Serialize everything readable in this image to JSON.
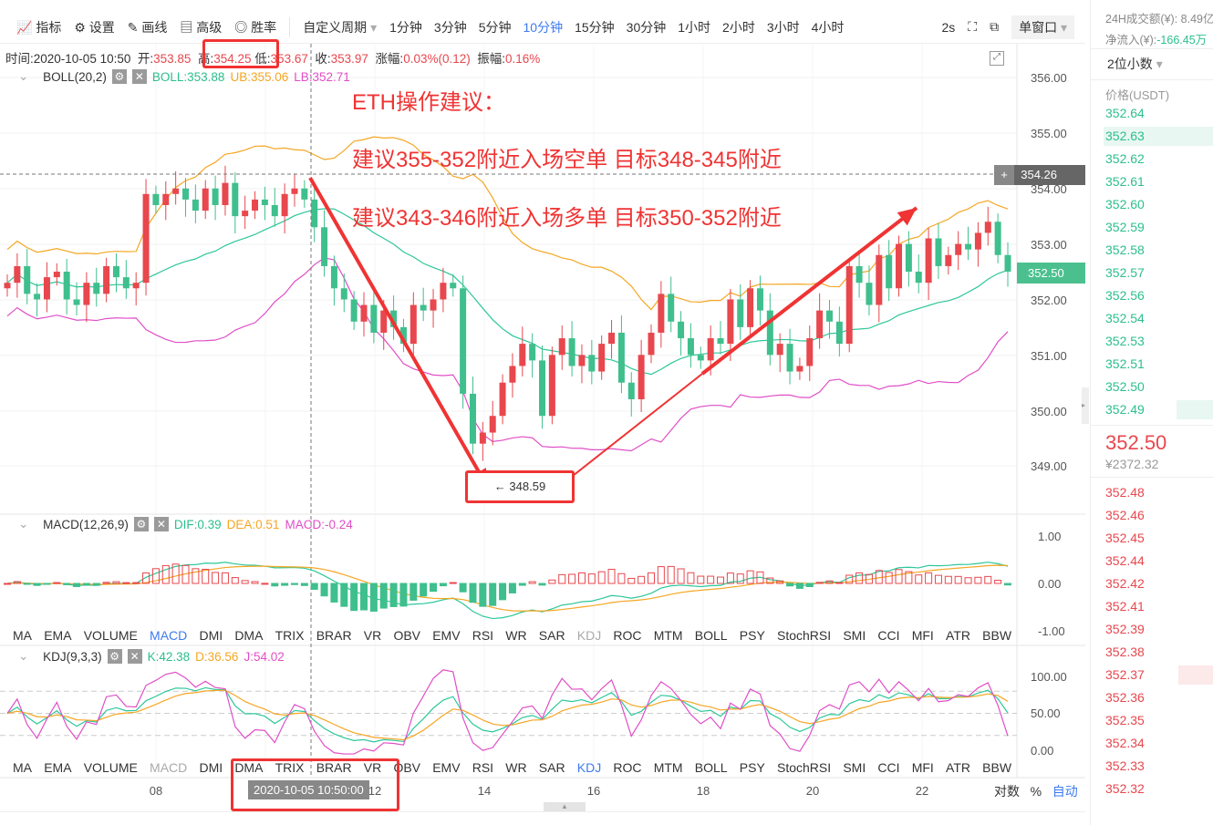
{
  "toolbar": {
    "tools": [
      "指标",
      "设置",
      "画线",
      "高级",
      "胜率"
    ],
    "period_select": "自定义周期",
    "periods": [
      "1分钟",
      "3分钟",
      "5分钟",
      "10分钟",
      "15分钟",
      "30分钟",
      "1小时",
      "2小时",
      "3小时",
      "4小时"
    ],
    "active_period": "10分钟",
    "refresh": "2s",
    "window_mode": "单窗口"
  },
  "info": {
    "time_label": "时间:",
    "time": "2020-10-05 10:50",
    "open_label": "开:",
    "open": "353.85",
    "high_label": "高:",
    "high": "354.25",
    "low_label": "低:",
    "low": "353.67",
    "close_label": "收:",
    "close": "353.97",
    "change_label": "涨幅:",
    "change": "0.03%(0.12)",
    "amp_label": "振幅:",
    "amp": "0.16%"
  },
  "boll": {
    "title": "BOLL(20,2)",
    "boll": "BOLL:353.88",
    "ub": "UB:355.06",
    "lb": "LB:352.71"
  },
  "macd": {
    "title": "MACD(12,26,9)",
    "dif": "DIF:0.39",
    "dea": "DEA:0.51",
    "macd": "MACD:-0.24"
  },
  "kdj": {
    "title": "KDJ(9,3,3)",
    "k": "K:42.38",
    "d": "D:36.56",
    "j": "J:54.02"
  },
  "indicator_tabs": [
    "MA",
    "EMA",
    "VOLUME",
    "MACD",
    "DMI",
    "DMA",
    "TRIX",
    "BRAR",
    "VR",
    "OBV",
    "EMV",
    "RSI",
    "WR",
    "SAR",
    "KDJ",
    "ROC",
    "MTM",
    "BOLL",
    "PSY",
    "StochRSI",
    "SMI",
    "CCI",
    "MFI",
    "ATR",
    "BBW"
  ],
  "annotations": {
    "title": "ETH操作建议：",
    "line1": "建议355-352附近入场空单    目标348-345附近",
    "line2": "建议343-346附近入场多单    目标350-352附近",
    "low_marker": "← 348.59"
  },
  "price_axis": [
    "356.00",
    "355.00",
    "354.00",
    "353.00",
    "352.00",
    "351.00",
    "350.00",
    "349.00"
  ],
  "crosshair_price": "354.26",
  "last_price": "352.50",
  "macd_axis": [
    "1.00",
    "0.00",
    "-1.00"
  ],
  "kdj_axis": [
    "100.00",
    "50.00",
    "0.00"
  ],
  "time_axis": [
    "08",
    "12",
    "14",
    "16",
    "18",
    "20",
    "22"
  ],
  "crosshair_time": "2020-10-05 10:50:00",
  "axis_opts": {
    "log": "对数",
    "pct": "%",
    "auto": "自动"
  },
  "colors": {
    "up": "#e8474d",
    "down": "#3fbf8d",
    "mid": "#2cc79a",
    "ub": "#f5a623",
    "lb": "#e04ec7",
    "annotation": "#f03333"
  },
  "right_panel": {
    "vol_24h": "24H成交额(¥): 8.49亿",
    "net_inflow_label": "净流入(¥):",
    "net_inflow": "-166.45万",
    "precision": "2位小数",
    "price_header": "价格(USDT)",
    "asks": [
      "352.64",
      "352.63",
      "352.62",
      "352.61",
      "352.60",
      "352.59",
      "352.58",
      "352.57",
      "352.56",
      "352.54",
      "352.53",
      "352.51",
      "352.50",
      "352.49"
    ],
    "last": "352.50",
    "last_cny": "¥2372.32",
    "bids": [
      "352.48",
      "352.46",
      "352.45",
      "352.44",
      "352.42",
      "352.41",
      "352.39",
      "352.38",
      "352.37",
      "352.36",
      "352.35",
      "352.34",
      "352.33",
      "352.32"
    ]
  },
  "chart_data": {
    "type": "candlestick",
    "timeframe": "10分钟",
    "ylim": [
      348.4,
      356.4
    ],
    "closes": [
      352.3,
      352.6,
      352.1,
      352.0,
      352.4,
      352.5,
      352.0,
      351.9,
      352.3,
      352.1,
      352.6,
      352.4,
      352.2,
      352.3,
      353.9,
      353.7,
      353.9,
      354.0,
      353.8,
      353.6,
      354.0,
      353.7,
      354.1,
      353.5,
      353.6,
      353.8,
      353.7,
      353.5,
      353.9,
      354.0,
      353.8,
      353.3,
      352.6,
      352.2,
      352.0,
      351.6,
      351.9,
      351.4,
      351.8,
      351.5,
      351.2,
      351.9,
      351.8,
      352.0,
      352.3,
      352.2,
      350.3,
      349.4,
      349.6,
      349.9,
      350.5,
      350.8,
      351.2,
      350.9,
      349.9,
      351.0,
      351.3,
      350.8,
      351.0,
      350.7,
      351.2,
      351.4,
      350.5,
      350.2,
      351.0,
      351.4,
      352.1,
      351.6,
      351.3,
      351.0,
      350.9,
      351.3,
      351.2,
      352.0,
      351.5,
      352.2,
      351.8,
      351.0,
      351.2,
      350.7,
      350.8,
      351.3,
      351.8,
      351.6,
      351.2,
      352.6,
      352.3,
      351.9,
      352.8,
      352.2,
      353.0,
      352.5,
      352.3,
      353.1,
      352.6,
      352.8,
      353.0,
      352.9,
      353.2,
      353.4,
      352.8,
      352.5
    ]
  }
}
